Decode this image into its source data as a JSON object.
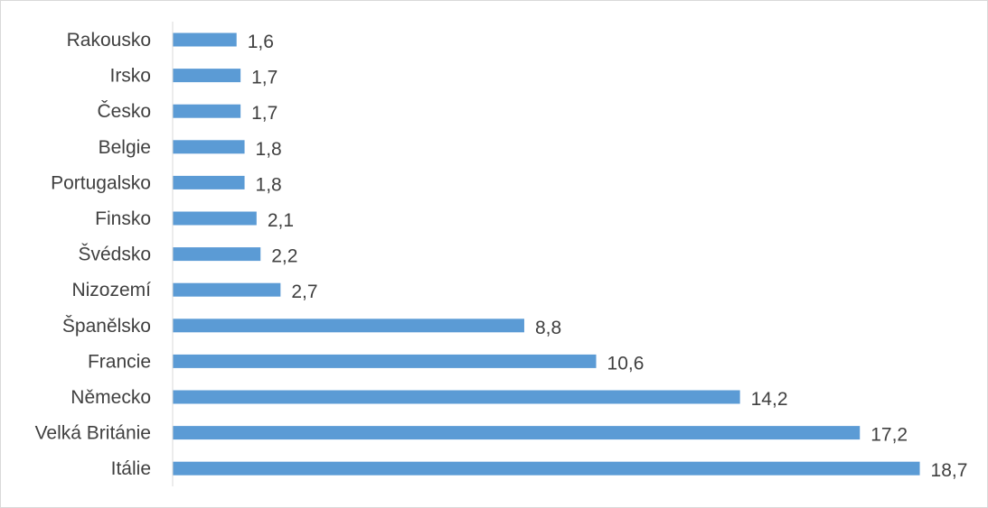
{
  "chart_data": {
    "type": "bar",
    "orientation": "horizontal",
    "categories": [
      "Rakousko",
      "Irsko",
      "Česko",
      "Belgie",
      "Portugalsko",
      "Finsko",
      "Švédsko",
      "Nizozemí",
      "Španělsko",
      "Francie",
      "Německo",
      "Velká Británie",
      "Itálie"
    ],
    "values": [
      1.6,
      1.7,
      1.7,
      1.8,
      1.8,
      2.1,
      2.2,
      2.7,
      8.8,
      10.6,
      14.2,
      17.2,
      18.7
    ],
    "value_labels": [
      "1,6",
      "1,7",
      "1,7",
      "1,8",
      "1,8",
      "2,1",
      "2,2",
      "2,7",
      "8,8",
      "10,6",
      "14,2",
      "17,2",
      "18,7"
    ],
    "title": "",
    "xlabel": "",
    "ylabel": "",
    "xlim": [
      0,
      20
    ],
    "grid": false,
    "legend": "none",
    "bar_color": "#5b9bd5",
    "axis_color": "#d9d9d9",
    "text_color": "#404040"
  }
}
